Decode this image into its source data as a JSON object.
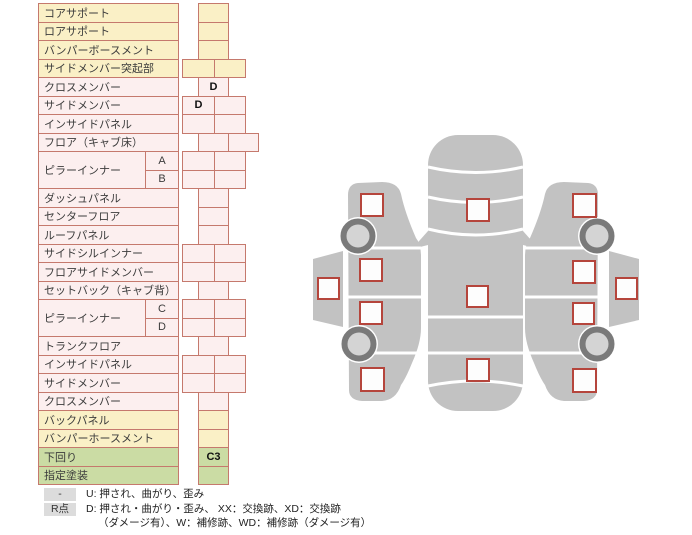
{
  "palette": {
    "table_border": "#C5796D",
    "group_yellow": "#FAF0C6",
    "group_pink": "#FCEFEF",
    "group_green": "#CBDCA4",
    "marker_border": "#B5453C",
    "car_body_gray": "#C2C2C2",
    "wheel_ring": "#7A7A7A",
    "wheel_center": "#D4D4D4"
  },
  "table": {
    "rows": [
      {
        "label": "コアサポート",
        "group": "yellow",
        "cells": [
          {
            "col": "S",
            "value": ""
          }
        ]
      },
      {
        "label": "ロアサポート",
        "group": "yellow",
        "cells": [
          {
            "col": "S",
            "value": ""
          }
        ]
      },
      {
        "label": "バンパーボースメント",
        "group": "yellow",
        "cells": [
          {
            "col": "S",
            "value": ""
          }
        ]
      },
      {
        "label": "サイドメンバー突起部",
        "group": "yellow",
        "cells": [
          {
            "col": "C1",
            "value": ""
          },
          {
            "col": "C2",
            "value": ""
          }
        ]
      },
      {
        "label": "クロスメンバー",
        "group": "pink",
        "cells": [
          {
            "col": "S",
            "value": "D"
          }
        ]
      },
      {
        "label": "サイドメンバー",
        "group": "pink",
        "cells": [
          {
            "col": "C1",
            "value": "D"
          },
          {
            "col": "C2",
            "value": ""
          }
        ]
      },
      {
        "label": "インサイドパネル",
        "group": "pink",
        "cells": [
          {
            "col": "C1",
            "value": ""
          },
          {
            "col": "C2",
            "value": ""
          }
        ]
      },
      {
        "label": "フロア（キャブ床）",
        "group": "pink",
        "cells": [
          {
            "col": "S",
            "value": ""
          },
          {
            "col": "R",
            "value": ""
          }
        ]
      },
      {
        "label": "ピラーインナー",
        "group": "pink",
        "sub": [
          {
            "name": "A",
            "cells": [
              {
                "col": "C1",
                "value": ""
              },
              {
                "col": "C2",
                "value": ""
              }
            ]
          },
          {
            "name": "B",
            "cells": [
              {
                "col": "C1",
                "value": ""
              },
              {
                "col": "C2",
                "value": ""
              }
            ]
          }
        ]
      },
      {
        "label": "ダッシュパネル",
        "group": "pink",
        "cells": [
          {
            "col": "S",
            "value": ""
          }
        ]
      },
      {
        "label": "センターフロア",
        "group": "pink",
        "cells": [
          {
            "col": "S",
            "value": ""
          }
        ]
      },
      {
        "label": "ルーフパネル",
        "group": "pink",
        "cells": [
          {
            "col": "S",
            "value": ""
          }
        ]
      },
      {
        "label": "サイドシルインナー",
        "group": "pink",
        "cells": [
          {
            "col": "C1",
            "value": ""
          },
          {
            "col": "C2",
            "value": ""
          }
        ]
      },
      {
        "label": "フロアサイドメンバー",
        "group": "pink",
        "cells": [
          {
            "col": "C1",
            "value": ""
          },
          {
            "col": "C2",
            "value": ""
          }
        ]
      },
      {
        "label": "セットバック（キャブ背）",
        "group": "pink",
        "cells": [
          {
            "col": "S",
            "value": ""
          }
        ]
      },
      {
        "label": "ピラーインナー",
        "group": "pink",
        "sub": [
          {
            "name": "C",
            "cells": [
              {
                "col": "C1",
                "value": ""
              },
              {
                "col": "C2",
                "value": ""
              }
            ]
          },
          {
            "name": "D",
            "cells": [
              {
                "col": "C1",
                "value": ""
              },
              {
                "col": "C2",
                "value": ""
              }
            ]
          }
        ]
      },
      {
        "label": "トランクフロア",
        "group": "pink",
        "cells": [
          {
            "col": "S",
            "value": ""
          }
        ]
      },
      {
        "label": "インサイドパネル",
        "group": "pink",
        "cells": [
          {
            "col": "C1",
            "value": ""
          },
          {
            "col": "C2",
            "value": ""
          }
        ]
      },
      {
        "label": "サイドメンバー",
        "group": "pink",
        "cells": [
          {
            "col": "C1",
            "value": ""
          },
          {
            "col": "C2",
            "value": ""
          }
        ]
      },
      {
        "label": "クロスメンバー",
        "group": "pink",
        "cells": [
          {
            "col": "S",
            "value": ""
          }
        ]
      },
      {
        "label": "バックパネル",
        "group": "yellow",
        "cells": [
          {
            "col": "S",
            "value": ""
          }
        ]
      },
      {
        "label": "バンパーホースメント",
        "group": "yellow",
        "cells": [
          {
            "col": "S",
            "value": ""
          }
        ]
      },
      {
        "label": "下回り",
        "group": "green",
        "cells": [
          {
            "col": "S",
            "value": "C3"
          }
        ]
      },
      {
        "label": "指定塗装",
        "group": "green",
        "cells": [
          {
            "col": "S",
            "value": ""
          }
        ]
      }
    ]
  },
  "legend": {
    "rows": [
      {
        "key": "-",
        "text": "U: 押され、曲がり、歪み",
        "text2": ""
      },
      {
        "key": "R点",
        "text": "D: 押され・曲がり・歪み、 XX：交換跡、XD：交換跡",
        "text2": "（ダメージ有）、W：補修跡、WD：補修跡（ダメージ有）"
      }
    ]
  }
}
